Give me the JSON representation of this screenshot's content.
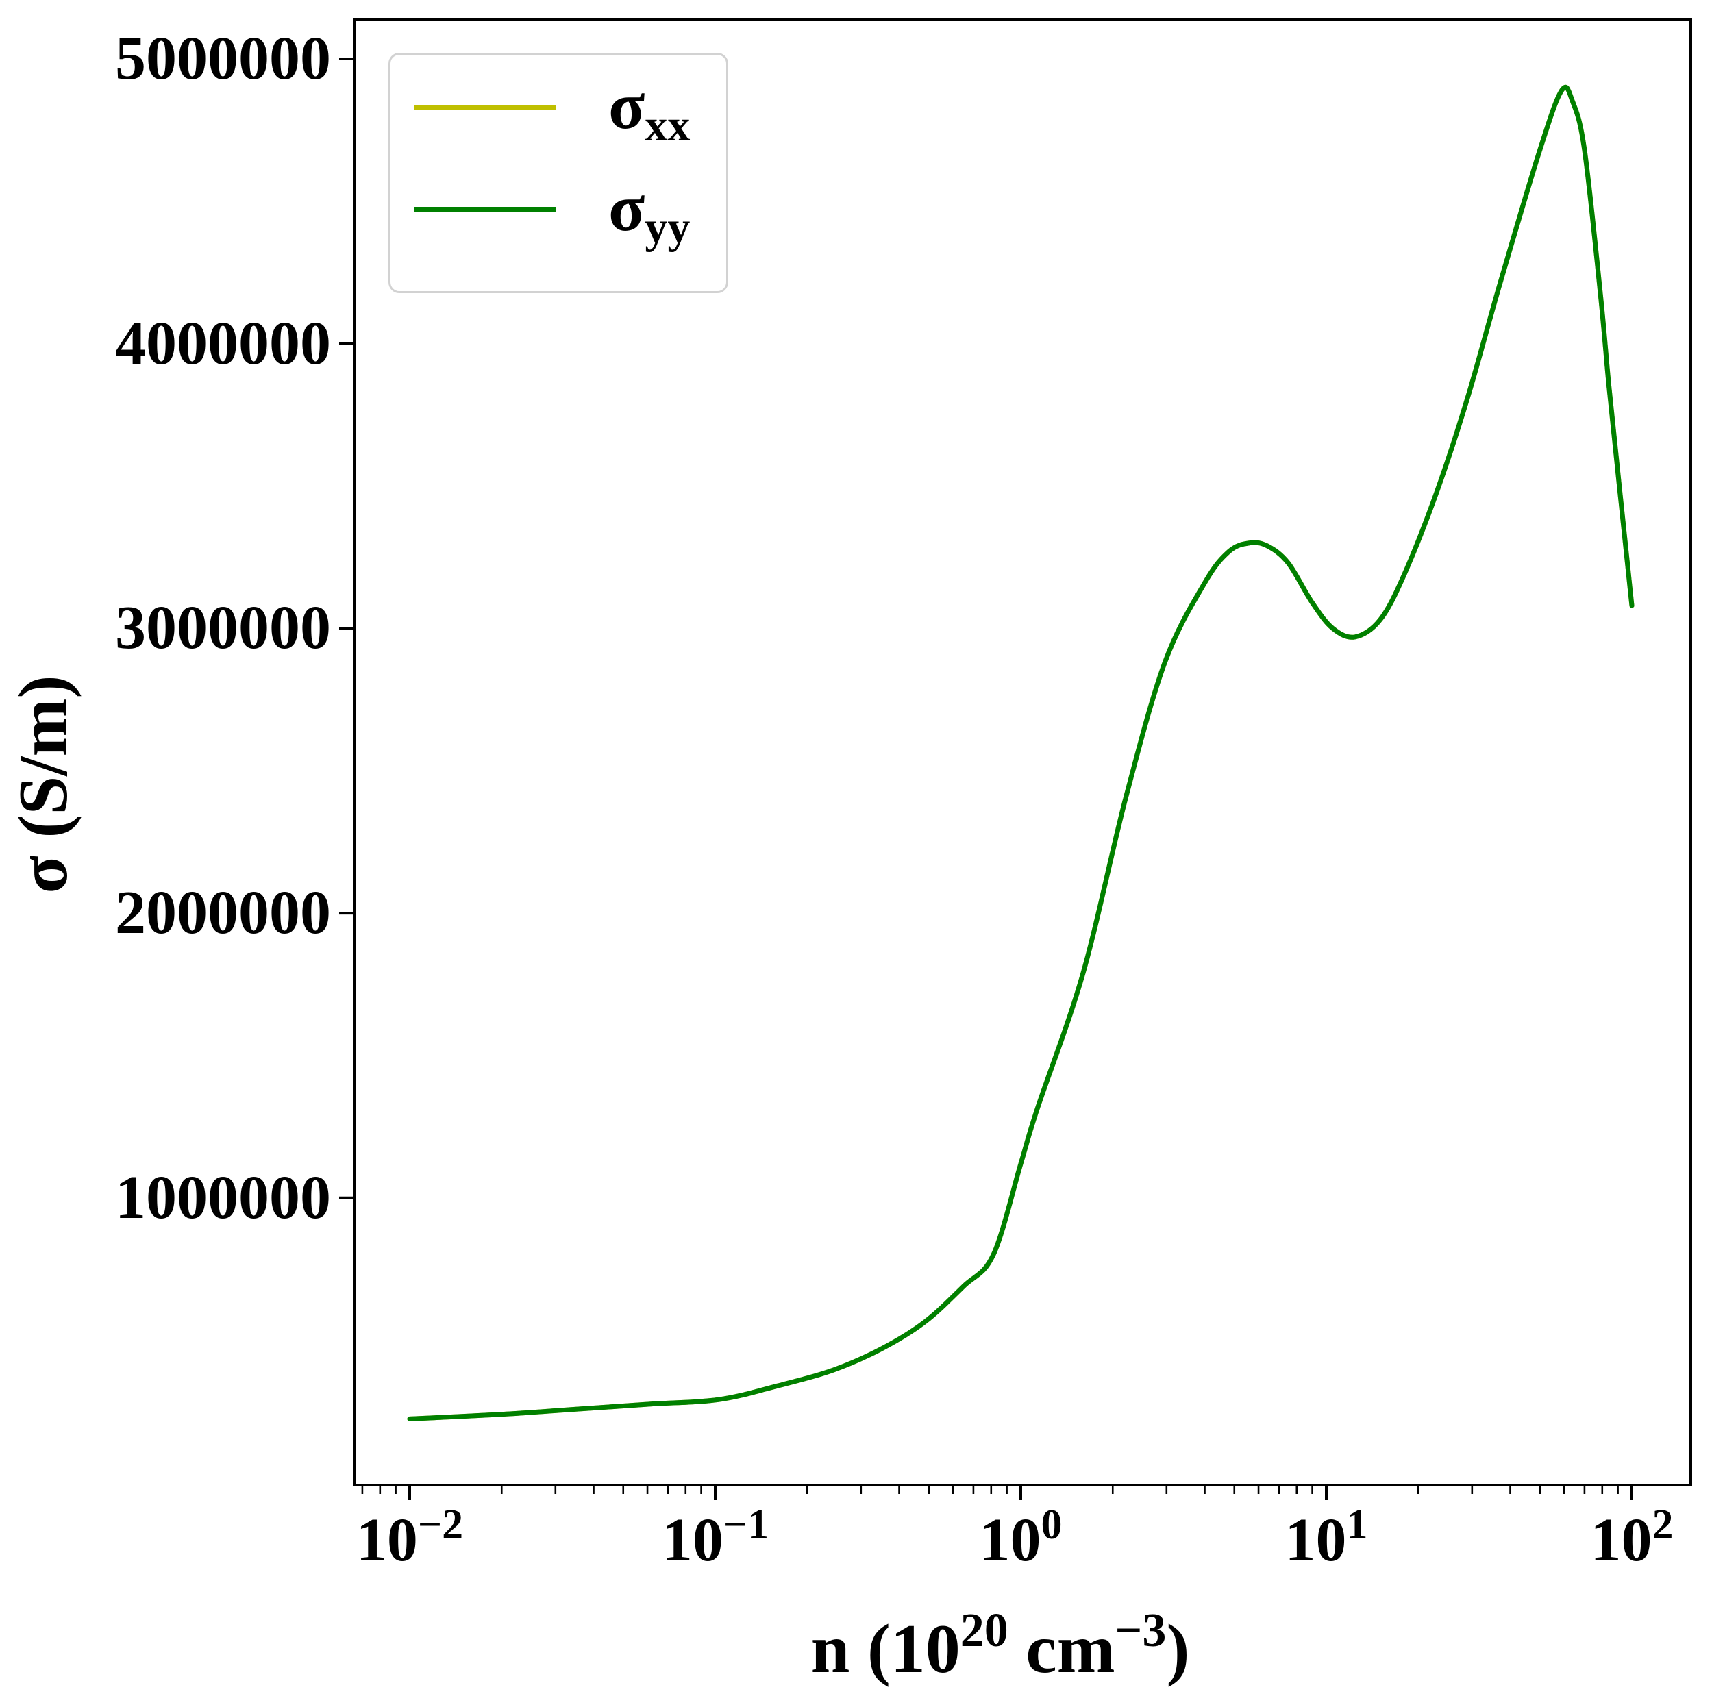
{
  "figure": {
    "background": "#ffffff",
    "axes_frame_color": "#000000",
    "xlabel_segments": [
      {
        "t": "n (10",
        "sup": false
      },
      {
        "t": "20",
        "sup": true
      },
      {
        "t": " cm",
        "sup": false
      },
      {
        "t": "−3",
        "sup": true
      },
      {
        "t": ")",
        "sup": false
      }
    ]
  },
  "chart_data": {
    "type": "line",
    "title": "",
    "xlabel": "n (10^20 cm^-3)",
    "ylabel": "σ (S/m)",
    "xscale": "log",
    "yscale": "linear",
    "grid": false,
    "xlim": [
      0.0066,
      155
    ],
    "ylim": [
      0,
      5140000
    ],
    "xticks": [
      {
        "value": 0.01,
        "exponent": "−2"
      },
      {
        "value": 0.1,
        "exponent": "−1"
      },
      {
        "value": 1,
        "exponent": "0"
      },
      {
        "value": 10,
        "exponent": "1"
      },
      {
        "value": 100,
        "exponent": "2"
      }
    ],
    "xtick_base": "10",
    "yticks": [
      {
        "value": 1000000,
        "label": "1000000"
      },
      {
        "value": 2000000,
        "label": "2000000"
      },
      {
        "value": 3000000,
        "label": "3000000"
      },
      {
        "value": 4000000,
        "label": "4000000"
      },
      {
        "value": 5000000,
        "label": "5000000"
      }
    ],
    "legend": {
      "position": "upper left",
      "frame": true
    },
    "x_shared": [
      0.01,
      0.02,
      0.035,
      0.0615,
      0.103,
      0.16,
      0.244,
      0.35,
      0.486,
      0.65,
      0.813,
      1.0,
      1.13,
      1.6,
      2.2,
      2.96,
      4.0,
      4.8,
      5.6,
      6.4,
      7.5,
      9.0,
      10.5,
      12.4,
      15,
      18,
      23,
      29,
      37,
      50,
      59,
      64,
      70,
      79,
      84,
      91,
      100
    ],
    "series": [
      {
        "name": "sigma_xx",
        "label_base": "σ",
        "label_sub": "xx",
        "color": "#bfbf00",
        "values": [
          224000,
          240000,
          258000,
          276000,
          292000,
          340000,
          396000,
          470000,
          565000,
          690000,
          800000,
          1120000,
          1310000,
          1790000,
          2400000,
          2880000,
          3160000,
          3270000,
          3300000,
          3290000,
          3230000,
          3090000,
          3000000,
          2970000,
          3030000,
          3190000,
          3480000,
          3810000,
          4210000,
          4680000,
          4890000,
          4850000,
          4680000,
          4170000,
          3860000,
          3500000,
          3080000
        ]
      },
      {
        "name": "sigma_yy",
        "label_base": "σ",
        "label_sub": "yy",
        "color": "#008000",
        "values": [
          224000,
          240000,
          258000,
          276000,
          292000,
          340000,
          396000,
          470000,
          565000,
          690000,
          800000,
          1120000,
          1310000,
          1790000,
          2400000,
          2880000,
          3160000,
          3270000,
          3300000,
          3290000,
          3230000,
          3090000,
          3000000,
          2970000,
          3030000,
          3190000,
          3480000,
          3810000,
          4210000,
          4680000,
          4890000,
          4850000,
          4680000,
          4170000,
          3860000,
          3500000,
          3080000
        ]
      }
    ],
    "annotations": {
      "curve_features": {
        "flat_start_value": 224000,
        "first_local_max": {
          "n": 5.6,
          "sigma": 3300000
        },
        "local_min": {
          "n": 12.4,
          "sigma": 2970000
        },
        "global_max": {
          "n": 59,
          "sigma": 4890000
        },
        "end_value": {
          "n": 100,
          "sigma": 3080000
        }
      }
    }
  }
}
